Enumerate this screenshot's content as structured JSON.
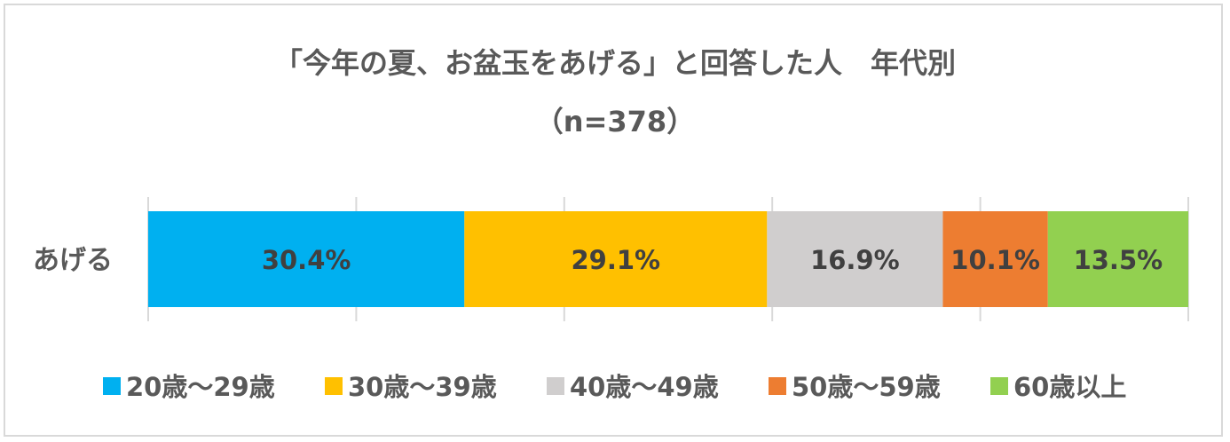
{
  "chart_data": {
    "type": "bar",
    "stacked": true,
    "orientation": "horizontal",
    "percent": true,
    "title": "「今年の夏、お盆玉をあげる」と回答した人　年代別",
    "subtitle": "（n=378）",
    "categories": [
      "あげる"
    ],
    "series": [
      {
        "name": "20歳～29歳",
        "values": [
          30.4
        ],
        "label": "30.4%",
        "color": "#00B0F0"
      },
      {
        "name": "30歳～39歳",
        "values": [
          29.1
        ],
        "label": "29.1%",
        "color": "#FFC000"
      },
      {
        "name": "40歳～49歳",
        "values": [
          16.9
        ],
        "label": "16.9%",
        "color": "#D0CECE"
      },
      {
        "name": "50歳～59歳",
        "values": [
          10.1
        ],
        "label": "10.1%",
        "color": "#ED7D31"
      },
      {
        "name": "60歳以上",
        "values": [
          13.5
        ],
        "label": "13.5%",
        "color": "#92D050"
      }
    ],
    "xlim": [
      0,
      100
    ],
    "grid": true,
    "legend": "bottom"
  }
}
